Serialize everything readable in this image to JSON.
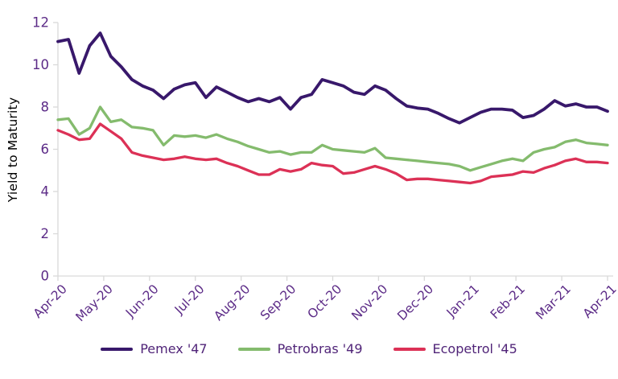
{
  "chart_data": {
    "type": "line",
    "title": "",
    "ylabel": "Yield to Maturity",
    "ylim": [
      0,
      12
    ],
    "yticks": [
      0,
      2,
      4,
      6,
      8,
      10,
      12
    ],
    "x_tick_labels": [
      "Apr-20",
      "May-20",
      "Jun-20",
      "Jul-20",
      "Aug-20",
      "Sep-20",
      "Oct-20",
      "Nov-20",
      "Dec-20",
      "Jan-21",
      "Feb-21",
      "Mar-21",
      "Apr-21"
    ],
    "grid": false,
    "legend_position": "bottom",
    "axis_color": "#d9d9d9",
    "label_color": "#5c2b87",
    "legend_text_color": "#502478",
    "series": [
      {
        "name": "Pemex '47",
        "color": "#38186b",
        "values": [
          11.1,
          11.2,
          9.6,
          10.9,
          11.5,
          10.4,
          9.9,
          9.3,
          9.0,
          8.8,
          8.4,
          8.85,
          9.05,
          9.15,
          8.45,
          8.95,
          8.7,
          8.45,
          8.25,
          8.4,
          8.25,
          8.45,
          7.9,
          8.45,
          8.6,
          9.3,
          9.15,
          9.0,
          8.7,
          8.6,
          9.0,
          8.8,
          8.4,
          8.05,
          7.95,
          7.9,
          7.7,
          7.45,
          7.25,
          7.5,
          7.75,
          7.9,
          7.9,
          7.85,
          7.5,
          7.6,
          7.9,
          8.3,
          8.05,
          8.15,
          8.0,
          8.0,
          7.8
        ]
      },
      {
        "name": "Petrobras '49",
        "color": "#84bb6d",
        "values": [
          7.4,
          7.45,
          6.7,
          7.0,
          8.0,
          7.3,
          7.4,
          7.05,
          7.0,
          6.9,
          6.2,
          6.65,
          6.6,
          6.65,
          6.55,
          6.7,
          6.5,
          6.35,
          6.15,
          6.0,
          5.85,
          5.9,
          5.75,
          5.85,
          5.85,
          6.2,
          6.0,
          5.95,
          5.9,
          5.85,
          6.05,
          5.6,
          5.55,
          5.5,
          5.45,
          5.4,
          5.35,
          5.3,
          5.2,
          5.0,
          5.15,
          5.3,
          5.45,
          5.55,
          5.45,
          5.85,
          6.0,
          6.1,
          6.35,
          6.45,
          6.3,
          6.25,
          6.2
        ]
      },
      {
        "name": "Ecopetrol '45",
        "color": "#dc3156",
        "values": [
          6.9,
          6.7,
          6.45,
          6.5,
          7.2,
          6.85,
          6.5,
          5.85,
          5.7,
          5.6,
          5.5,
          5.55,
          5.65,
          5.55,
          5.5,
          5.55,
          5.35,
          5.2,
          5.0,
          4.8,
          4.8,
          5.05,
          4.95,
          5.05,
          5.35,
          5.25,
          5.2,
          4.85,
          4.9,
          5.05,
          5.2,
          5.05,
          4.85,
          4.55,
          4.6,
          4.6,
          4.55,
          4.5,
          4.45,
          4.4,
          4.5,
          4.7,
          4.75,
          4.8,
          4.95,
          4.9,
          5.1,
          5.25,
          5.45,
          5.55,
          5.4,
          5.4,
          5.35
        ]
      }
    ]
  }
}
